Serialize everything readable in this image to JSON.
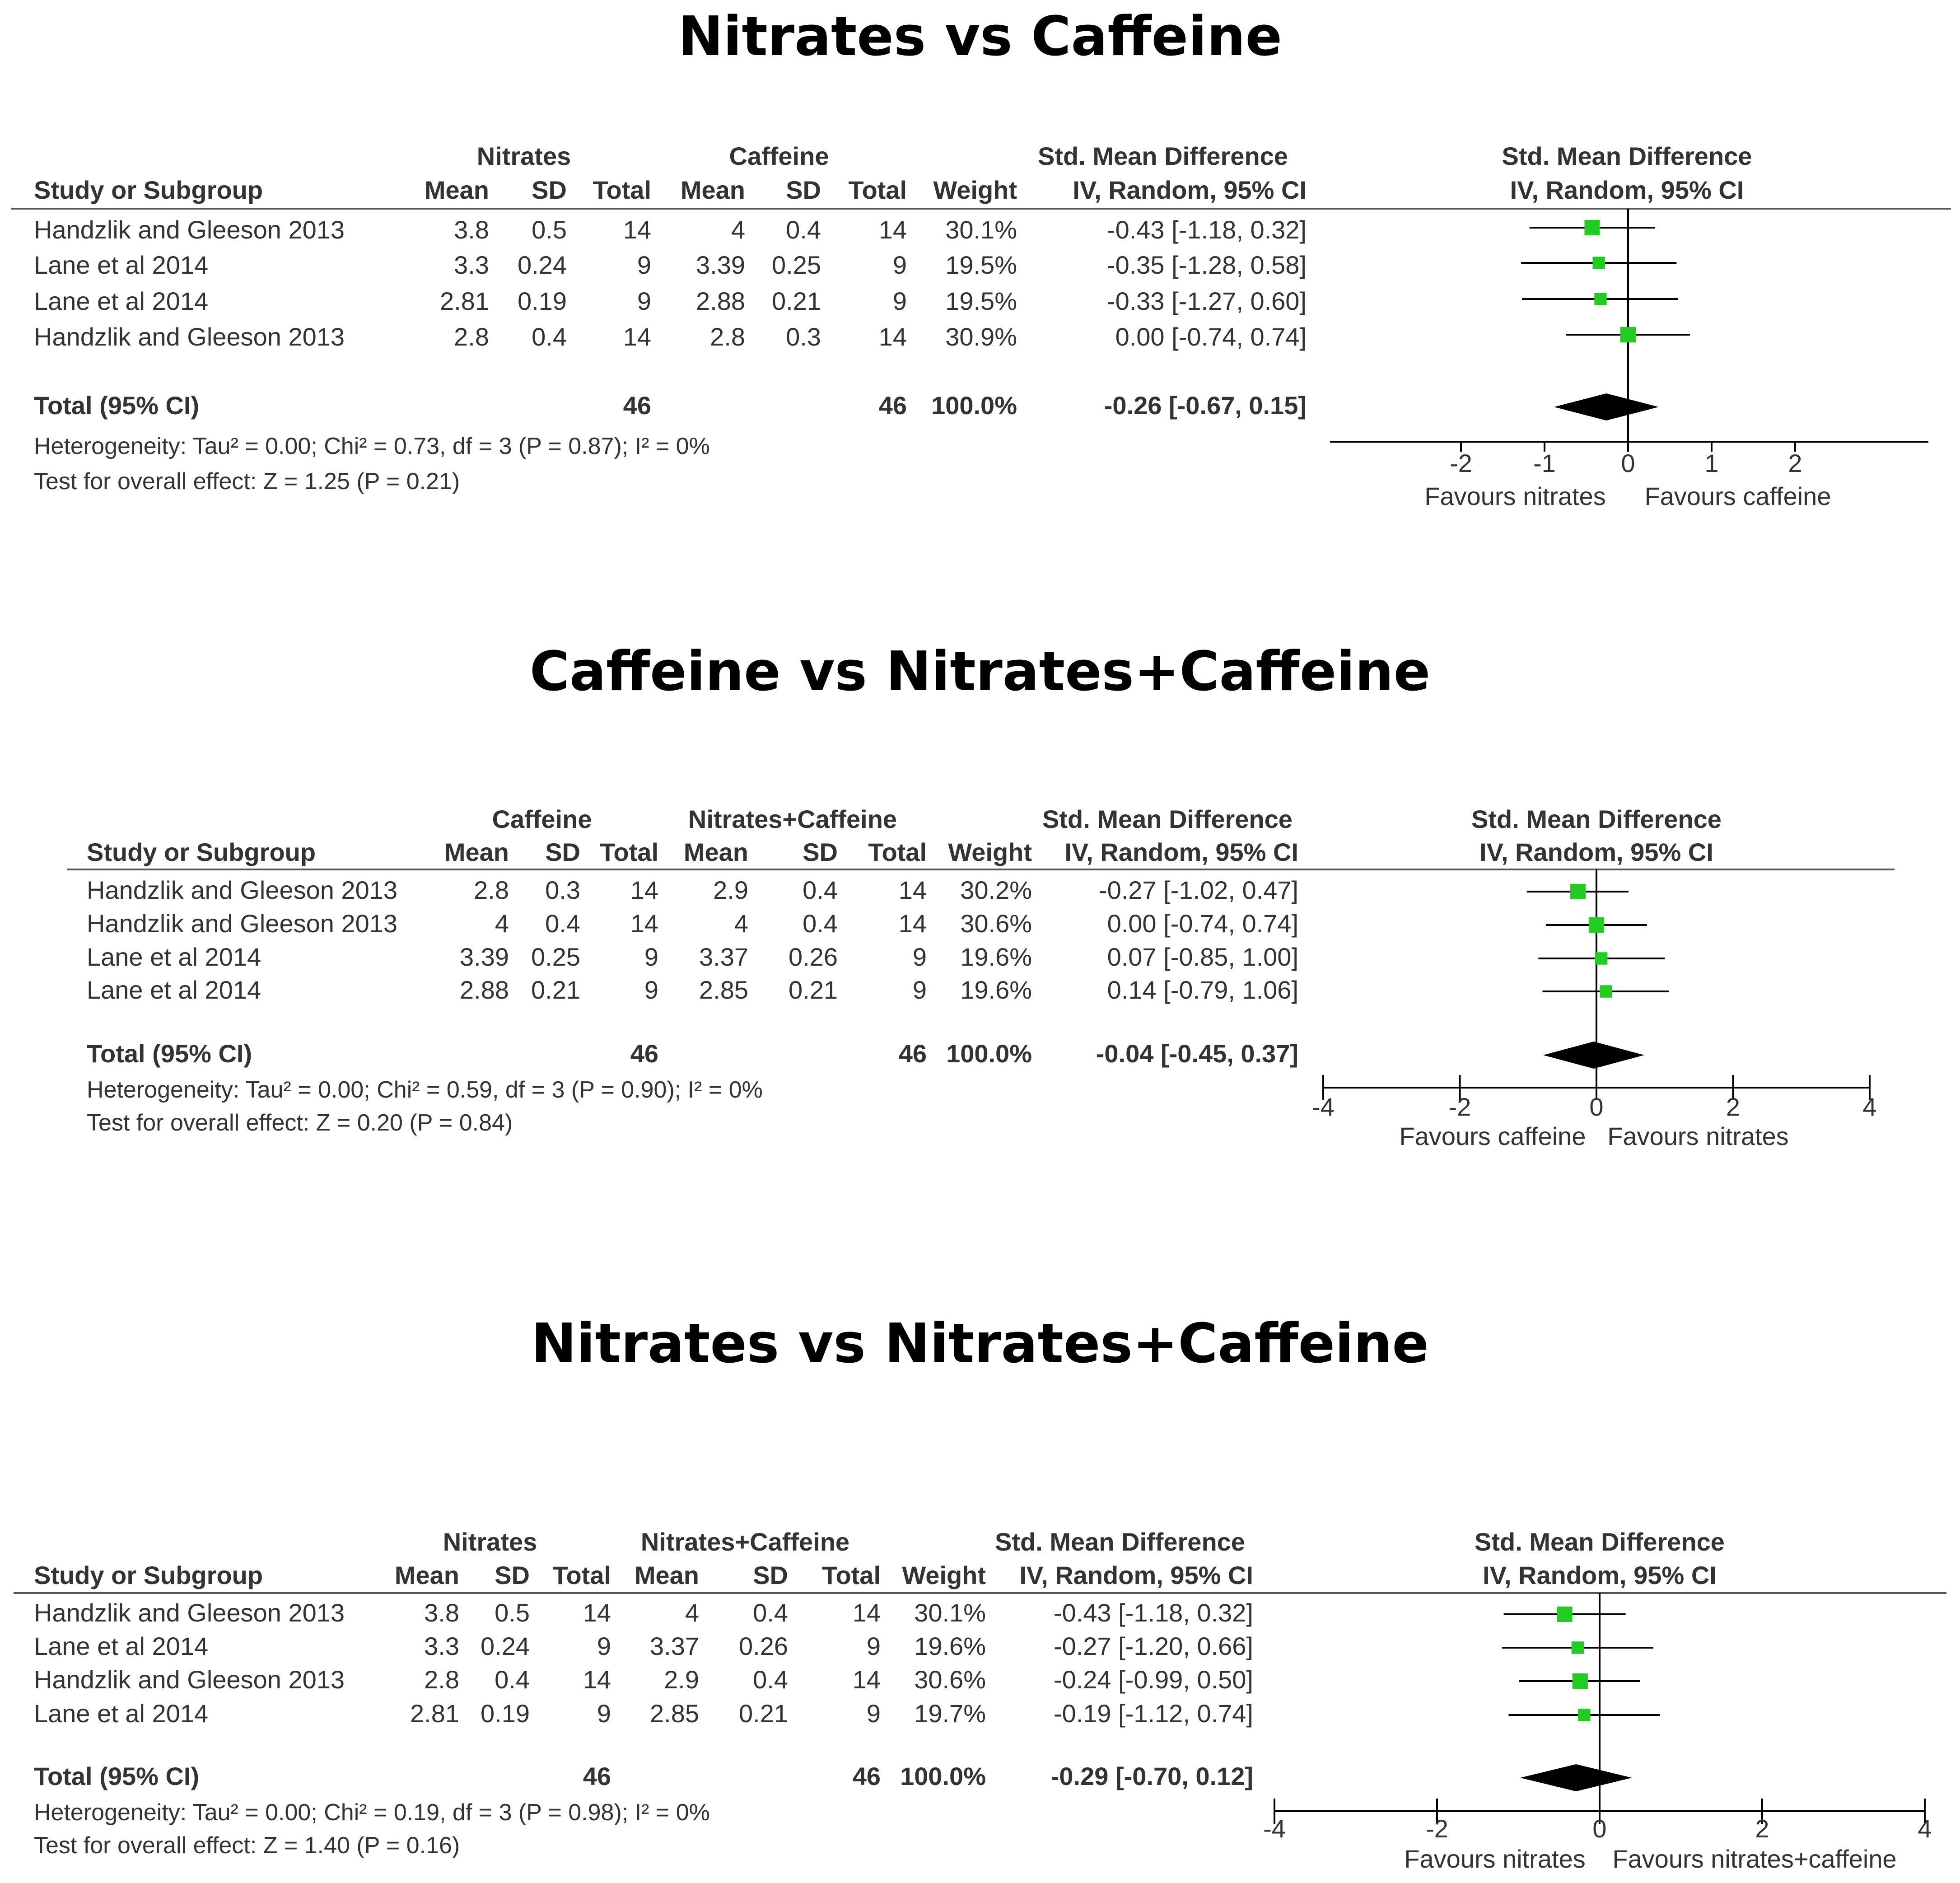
{
  "chart_data": [
    {
      "type": "forest",
      "title": "Nitrates vs Caffeine",
      "group1": "Nitrates",
      "group2": "Caffeine",
      "headers": {
        "study": "Study or Subgroup",
        "mean": "Mean",
        "sd": "SD",
        "total": "Total",
        "weight": "Weight",
        "effect_top": "Std. Mean Difference",
        "effect_bottom": "IV, Random, 95% CI"
      },
      "rows": [
        {
          "study": "Handzlik and Gleeson 2013",
          "m1": "3.8",
          "sd1": "0.5",
          "n1": "14",
          "m2": "4",
          "sd2": "0.4",
          "n2": "14",
          "weight": "30.1%",
          "ci_text": "-0.43 [-1.18, 0.32]",
          "est": -0.43,
          "lo": -1.18,
          "hi": 0.32,
          "w": 30.1
        },
        {
          "study": "Lane et al 2014",
          "m1": "3.3",
          "sd1": "0.24",
          "n1": "9",
          "m2": "3.39",
          "sd2": "0.25",
          "n2": "9",
          "weight": "19.5%",
          "ci_text": "-0.35 [-1.28, 0.58]",
          "est": -0.35,
          "lo": -1.28,
          "hi": 0.58,
          "w": 19.5
        },
        {
          "study": "Lane et al 2014",
          "m1": "2.81",
          "sd1": "0.19",
          "n1": "9",
          "m2": "2.88",
          "sd2": "0.21",
          "n2": "9",
          "weight": "19.5%",
          "ci_text": "-0.33 [-1.27, 0.60]",
          "est": -0.33,
          "lo": -1.27,
          "hi": 0.6,
          "w": 19.5
        },
        {
          "study": "Handzlik and Gleeson 2013",
          "m1": "2.8",
          "sd1": "0.4",
          "n1": "14",
          "m2": "2.8",
          "sd2": "0.3",
          "n2": "14",
          "weight": "30.9%",
          "ci_text": "0.00 [-0.74, 0.74]",
          "est": 0.0,
          "lo": -0.74,
          "hi": 0.74,
          "w": 30.9
        }
      ],
      "total": {
        "label": "Total (95% CI)",
        "n1": "46",
        "n2": "46",
        "weight": "100.0%",
        "ci_text": "-0.26 [-0.67, 0.15]",
        "est": -0.26,
        "lo": -0.67,
        "hi": 0.15
      },
      "heterogeneity": "Heterogeneity: Tau² = 0.00; Chi² = 0.73, df = 3 (P = 0.87); I² = 0%",
      "overall": "Test for overall effect: Z = 1.25 (P = 0.21)",
      "xlim": [
        -3.6,
        3.6
      ],
      "xticks": [
        -2,
        -1,
        0,
        1,
        2
      ],
      "xtick_labels": [
        "-2",
        "-1",
        "0",
        "1",
        "2"
      ],
      "favours_left": "Favours nitrates",
      "favours_right": "Favours caffeine",
      "colors": {
        "marker": "#22cc22",
        "diamond": "#000000",
        "line": "#000000"
      }
    },
    {
      "type": "forest",
      "title": "Caffeine vs Nitrates+Caffeine",
      "group1": "Caffeine",
      "group2": "Nitrates+Caffeine",
      "headers": {
        "study": "Study or Subgroup",
        "mean": "Mean",
        "sd": "SD",
        "total": "Total",
        "weight": "Weight",
        "effect_top": "Std. Mean Difference",
        "effect_bottom": "IV, Random, 95% CI"
      },
      "rows": [
        {
          "study": "Handzlik and Gleeson 2013",
          "m1": "2.8",
          "sd1": "0.3",
          "n1": "14",
          "m2": "2.9",
          "sd2": "0.4",
          "n2": "14",
          "weight": "30.2%",
          "ci_text": "-0.27 [-1.02, 0.47]",
          "est": -0.27,
          "lo": -1.02,
          "hi": 0.47,
          "w": 30.2
        },
        {
          "study": "Handzlik and Gleeson 2013",
          "m1": "4",
          "sd1": "0.4",
          "n1": "14",
          "m2": "4",
          "sd2": "0.4",
          "n2": "14",
          "weight": "30.6%",
          "ci_text": "0.00 [-0.74, 0.74]",
          "est": 0.0,
          "lo": -0.74,
          "hi": 0.74,
          "w": 30.6
        },
        {
          "study": "Lane et al 2014",
          "m1": "3.39",
          "sd1": "0.25",
          "n1": "9",
          "m2": "3.37",
          "sd2": "0.26",
          "n2": "9",
          "weight": "19.6%",
          "ci_text": "0.07 [-0.85, 1.00]",
          "est": 0.07,
          "lo": -0.85,
          "hi": 1.0,
          "w": 19.6
        },
        {
          "study": "Lane et al 2014",
          "m1": "2.88",
          "sd1": "0.21",
          "n1": "9",
          "m2": "2.85",
          "sd2": "0.21",
          "n2": "9",
          "weight": "19.6%",
          "ci_text": "0.14 [-0.79, 1.06]",
          "est": 0.14,
          "lo": -0.79,
          "hi": 1.06,
          "w": 19.6
        }
      ],
      "total": {
        "label": "Total (95% CI)",
        "n1": "46",
        "n2": "46",
        "weight": "100.0%",
        "ci_text": "-0.04 [-0.45, 0.37]",
        "est": -0.04,
        "lo": -0.45,
        "hi": 0.37
      },
      "heterogeneity": "Heterogeneity: Tau² = 0.00; Chi² = 0.59, df = 3 (P = 0.90); I² = 0%",
      "overall": "Test for overall effect: Z = 0.20 (P = 0.84)",
      "xlim": [
        -4,
        4
      ],
      "xticks": [
        -4,
        -2,
        0,
        2,
        4
      ],
      "xtick_labels": [
        "-4",
        "-2",
        "0",
        "2",
        "4"
      ],
      "favours_left": "Favours caffeine",
      "favours_right": "Favours nitrates",
      "colors": {
        "marker": "#22cc22",
        "diamond": "#000000",
        "line": "#000000"
      }
    },
    {
      "type": "forest",
      "title": "Nitrates vs Nitrates+Caffeine",
      "group1": "Nitrates",
      "group2": "Nitrates+Caffeine",
      "headers": {
        "study": "Study or Subgroup",
        "mean": "Mean",
        "sd": "SD",
        "total": "Total",
        "weight": "Weight",
        "effect_top": "Std. Mean Difference",
        "effect_bottom": "IV, Random, 95% CI"
      },
      "rows": [
        {
          "study": "Handzlik and Gleeson 2013",
          "m1": "3.8",
          "sd1": "0.5",
          "n1": "14",
          "m2": "4",
          "sd2": "0.4",
          "n2": "14",
          "weight": "30.1%",
          "ci_text": "-0.43 [-1.18, 0.32]",
          "est": -0.43,
          "lo": -1.18,
          "hi": 0.32,
          "w": 30.1
        },
        {
          "study": "Lane et al 2014",
          "m1": "3.3",
          "sd1": "0.24",
          "n1": "9",
          "m2": "3.37",
          "sd2": "0.26",
          "n2": "9",
          "weight": "19.6%",
          "ci_text": "-0.27 [-1.20, 0.66]",
          "est": -0.27,
          "lo": -1.2,
          "hi": 0.66,
          "w": 19.6
        },
        {
          "study": "Handzlik and Gleeson 2013",
          "m1": "2.8",
          "sd1": "0.4",
          "n1": "14",
          "m2": "2.9",
          "sd2": "0.4",
          "n2": "14",
          "weight": "30.6%",
          "ci_text": "-0.24 [-0.99, 0.50]",
          "est": -0.24,
          "lo": -0.99,
          "hi": 0.5,
          "w": 30.6
        },
        {
          "study": "Lane et al 2014",
          "m1": "2.81",
          "sd1": "0.19",
          "n1": "9",
          "m2": "2.85",
          "sd2": "0.21",
          "n2": "9",
          "weight": "19.7%",
          "ci_text": "-0.19 [-1.12, 0.74]",
          "est": -0.19,
          "lo": -1.12,
          "hi": 0.74,
          "w": 19.7
        }
      ],
      "total": {
        "label": "Total (95% CI)",
        "n1": "46",
        "n2": "46",
        "weight": "100.0%",
        "ci_text": "-0.29 [-0.70, 0.12]",
        "est": -0.29,
        "lo": -0.7,
        "hi": 0.12
      },
      "heterogeneity": "Heterogeneity: Tau² = 0.00; Chi² = 0.19, df = 3 (P = 0.98); I² = 0%",
      "overall": "Test for overall effect: Z = 1.40 (P = 0.16)",
      "xlim": [
        -4,
        4
      ],
      "xticks": [
        -4,
        -2,
        0,
        2,
        4
      ],
      "xtick_labels": [
        "-4",
        "-2",
        "0",
        "2",
        "4"
      ],
      "favours_left": "Favours nitrates",
      "favours_right": "Favours nitrates+caffeine",
      "colors": {
        "marker": "#22cc22",
        "diamond": "#000000",
        "line": "#000000"
      }
    }
  ]
}
